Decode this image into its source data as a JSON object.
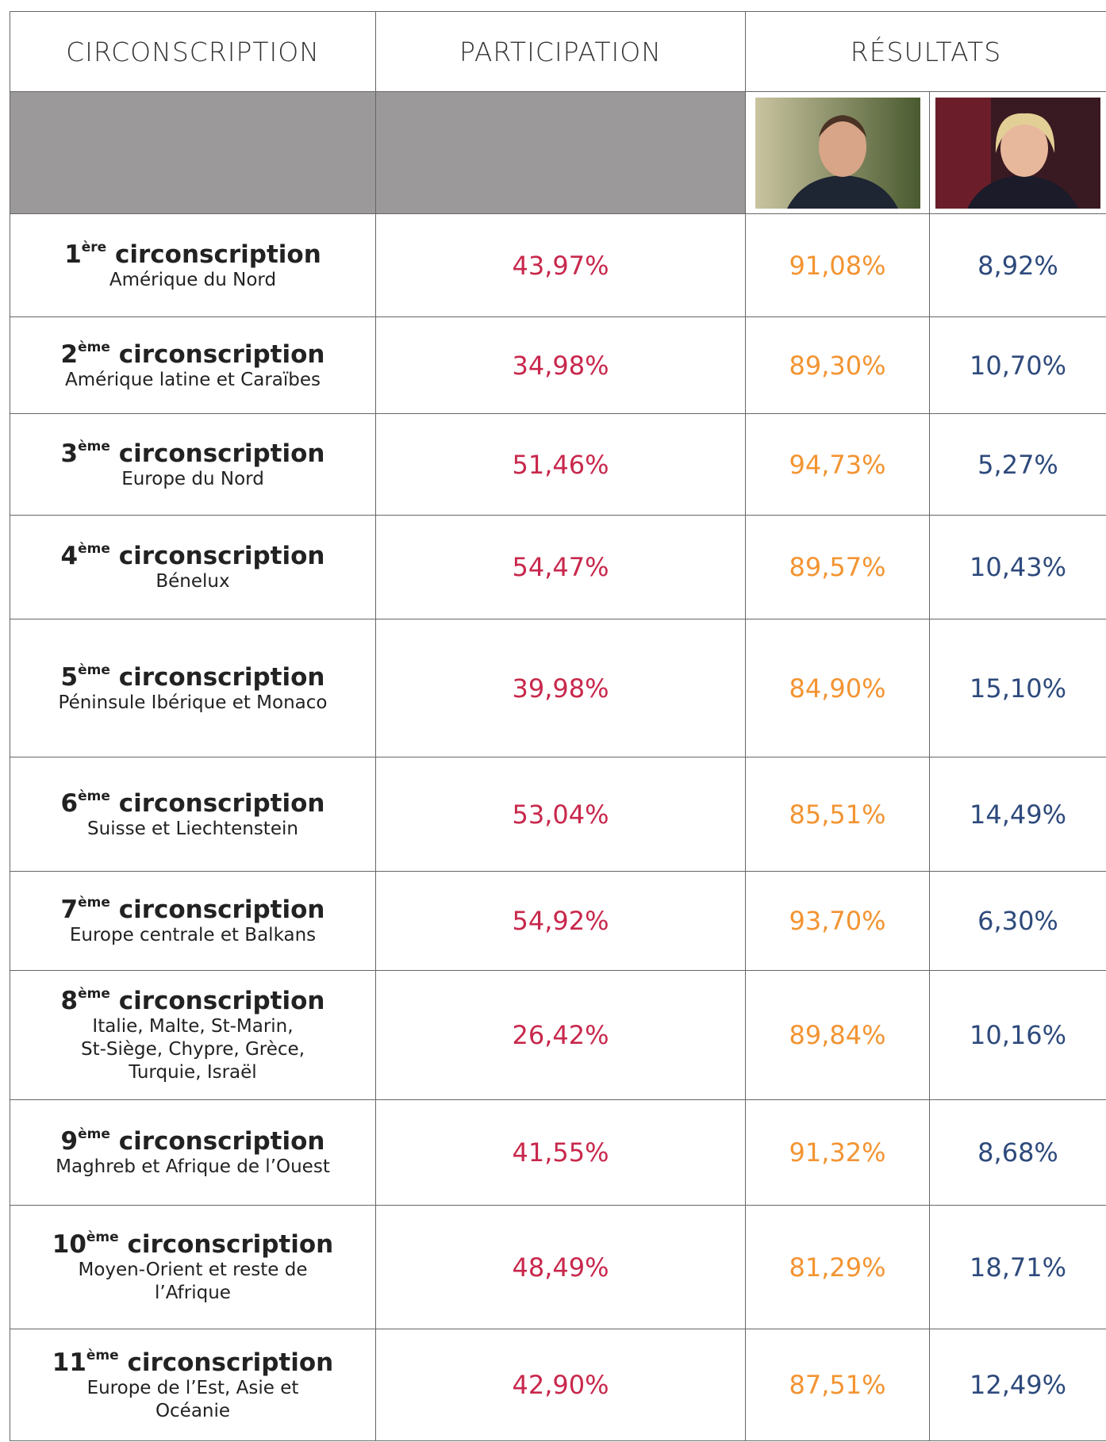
{
  "header": {
    "columns": [
      "CIRCONSCRIPTION",
      "PARTICIPATION",
      "RÉSULTATS"
    ]
  },
  "rows": [
    {
      "num": "1",
      "suffix": "ère",
      "label": "circonscription",
      "region": [
        "Amérique du Nord"
      ],
      "participation": "43,97%",
      "macron": "91,08%",
      "lepen": "8,92%"
    },
    {
      "num": "2",
      "suffix": "ème",
      "label": "circonscription",
      "region": [
        "Amérique latine et Caraïbes"
      ],
      "participation": "34,98%",
      "macron": "89,30%",
      "lepen": "10,70%"
    },
    {
      "num": "3",
      "suffix": "ème",
      "label": "circonscription",
      "region": [
        "Europe du Nord"
      ],
      "participation": "51,46%",
      "macron": "94,73%",
      "lepen": "5,27%"
    },
    {
      "num": "4",
      "suffix": "ème",
      "label": "circonscription",
      "region": [
        "Bénelux"
      ],
      "participation": "54,47%",
      "macron": "89,57%",
      "lepen": "10,43%"
    },
    {
      "num": "5",
      "suffix": "ème",
      "label": "circonscription",
      "region": [
        "Péninsule Ibérique et Monaco"
      ],
      "participation": "39,98%",
      "macron": "84,90%",
      "lepen": "15,10%"
    },
    {
      "num": "6",
      "suffix": "ème",
      "label": "circonscription",
      "region": [
        "Suisse et Liechtenstein"
      ],
      "participation": "53,04%",
      "macron": "85,51%",
      "lepen": "14,49%"
    },
    {
      "num": "7",
      "suffix": "ème",
      "label": "circonscription",
      "region": [
        "Europe centrale et Balkans"
      ],
      "participation": "54,92%",
      "macron": "93,70%",
      "lepen": "6,30%"
    },
    {
      "num": "8",
      "suffix": "ème",
      "label": "circonscription",
      "region": [
        "Italie, Malte, St-Marin,",
        "St-Siège, Chypre, Grèce,",
        "Turquie, Israël"
      ],
      "participation": "26,42%",
      "macron": "89,84%",
      "lepen": "10,16%"
    },
    {
      "num": "9",
      "suffix": "ème",
      "label": "circonscription",
      "region": [
        "Maghreb et Afrique de l’Ouest"
      ],
      "participation": "41,55%",
      "macron": "91,32%",
      "lepen": "8,68%"
    },
    {
      "num": "10",
      "suffix": "ème",
      "label": "circonscription",
      "region": [
        "Moyen-Orient et reste de",
        "l’Afrique"
      ],
      "participation": "48,49%",
      "macron": "81,29%",
      "lepen": "18,71%"
    },
    {
      "num": "11",
      "suffix": "ème",
      "label": "circonscription",
      "region": [
        "Europe de l’Est, Asie et",
        "Océanie"
      ],
      "participation": "42,90%",
      "macron": "87,51%",
      "lepen": "12,49%"
    }
  ]
}
